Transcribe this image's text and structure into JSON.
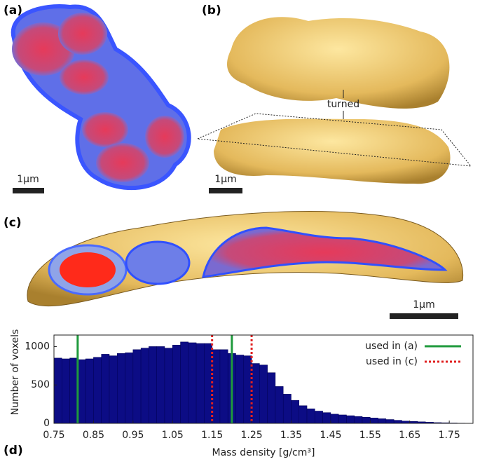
{
  "figure": {
    "panels": [
      {
        "label": "(a)",
        "scale": "1μm"
      },
      {
        "label": "(b)",
        "scale": "1μm",
        "note": "turned"
      },
      {
        "label": "(c)",
        "scale": "1μm"
      },
      {
        "label": "(d)"
      }
    ]
  },
  "chart_data": {
    "type": "histogram",
    "xlabel": "Mass density [g/cm³]",
    "ylabel": "Number of voxels",
    "bins": [
      0.75,
      0.77,
      0.79,
      0.81,
      0.83,
      0.85,
      0.87,
      0.89,
      0.91,
      0.93,
      0.95,
      0.97,
      0.99,
      1.01,
      1.03,
      1.05,
      1.07,
      1.09,
      1.11,
      1.13,
      1.15,
      1.17,
      1.19,
      1.21,
      1.23,
      1.25,
      1.27,
      1.29,
      1.31,
      1.33,
      1.35,
      1.37,
      1.39,
      1.41,
      1.43,
      1.45,
      1.47,
      1.49,
      1.51,
      1.53,
      1.55,
      1.57,
      1.59,
      1.61,
      1.63,
      1.65,
      1.67,
      1.69,
      1.71,
      1.73,
      1.75,
      1.77,
      1.79
    ],
    "values": [
      850,
      840,
      850,
      830,
      840,
      860,
      900,
      880,
      910,
      920,
      960,
      980,
      1000,
      1000,
      980,
      1020,
      1060,
      1050,
      1040,
      1040,
      960,
      960,
      910,
      890,
      880,
      780,
      760,
      660,
      480,
      380,
      300,
      230,
      190,
      160,
      140,
      120,
      110,
      100,
      90,
      80,
      70,
      60,
      50,
      40,
      30,
      25,
      20,
      15,
      10,
      8,
      5,
      3
    ],
    "color": "#0c0c85",
    "xlim": [
      0.75,
      1.81
    ],
    "ylim": [
      0,
      1150
    ],
    "xticks": [
      0.75,
      0.85,
      0.95,
      1.05,
      1.15,
      1.25,
      1.35,
      1.45,
      1.55,
      1.65,
      1.75
    ],
    "yticks": [
      0,
      500,
      1000
    ],
    "vlines": [
      {
        "name": "used in (a)",
        "color": "#1f9a3c",
        "dashed": false,
        "x": [
          0.81,
          1.2
        ]
      },
      {
        "name": "used in (c)",
        "color": "#e02020",
        "dashed": true,
        "x": [
          1.15,
          1.25
        ]
      }
    ],
    "legend": "upper right"
  }
}
